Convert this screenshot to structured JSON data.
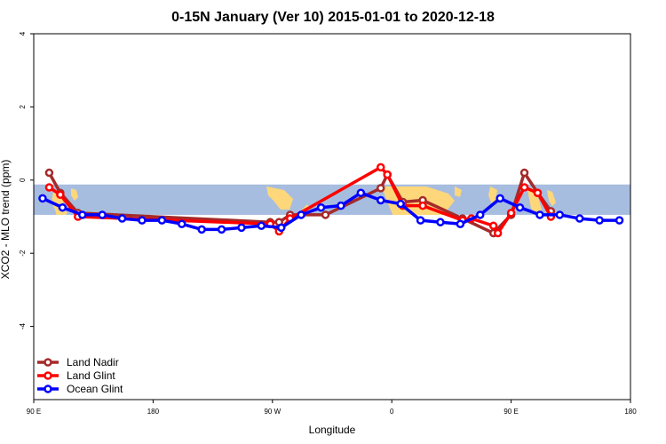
{
  "chart_data": {
    "type": "line",
    "title": "0-15N January (Ver 10)   2015-01-01 to 2020-12-18",
    "xlabel": "Longitude",
    "ylabel": "XCO2 - MLO trend (ppm)",
    "xlim": [
      -90,
      180
    ],
    "ylim": [
      -6,
      4
    ],
    "x_ticks": [
      {
        "value": -90,
        "label": "90 E"
      },
      {
        "value": -36,
        "label": "180"
      },
      {
        "value": 18,
        "label": "90 W"
      },
      {
        "value": 72,
        "label": "0"
      },
      {
        "value": 126,
        "label": "90 E"
      },
      {
        "value": 180,
        "label": "180"
      }
    ],
    "y_ticks": [
      {
        "value": -4,
        "label": "-4"
      },
      {
        "value": -2,
        "label": "-2"
      },
      {
        "value": 0,
        "label": "0"
      },
      {
        "value": 2,
        "label": "2"
      },
      {
        "value": 4,
        "label": "4"
      }
    ],
    "band": {
      "y_low": -0.95,
      "y_high": -0.12,
      "color": "#a7bddf"
    },
    "land_color": "#fdd77a",
    "legend_position": "bottom-left",
    "series": [
      {
        "name": "Land Nadir",
        "color": "#a52a2a",
        "x": [
          -83,
          -78,
          -70,
          17,
          21,
          26,
          42,
          67,
          70,
          77,
          86,
          104,
          118,
          126,
          132,
          138,
          144
        ],
        "y": [
          0.2,
          -0.35,
          -0.9,
          -1.15,
          -1.15,
          -0.95,
          -0.95,
          -0.22,
          0.15,
          -0.6,
          -0.55,
          -1.05,
          -1.45,
          -0.95,
          0.2,
          -0.35,
          -0.85
        ]
      },
      {
        "name": "Land Glint",
        "color": "#ff0000",
        "x": [
          -83,
          -78,
          -70,
          17,
          21,
          26,
          67,
          70,
          77,
          86,
          104,
          108,
          118,
          120,
          126,
          132,
          138,
          144
        ],
        "y": [
          -0.2,
          -0.4,
          -1.0,
          -1.2,
          -1.4,
          -1.05,
          0.35,
          0.15,
          -0.7,
          -0.7,
          -1.1,
          -1.05,
          -1.25,
          -1.45,
          -0.9,
          -0.2,
          -0.35,
          -1.0
        ]
      },
      {
        "name": "Ocean Glint",
        "color": "#0000ff",
        "x": [
          -86,
          -77,
          -68,
          -59,
          -50,
          -41,
          -32,
          -23,
          -14,
          -5,
          4,
          13,
          22,
          31,
          40,
          49,
          58,
          67,
          76,
          85,
          94,
          103,
          112,
          121,
          130,
          139,
          148,
          157,
          166,
          175
        ],
        "y": [
          -0.5,
          -0.75,
          -0.95,
          -0.95,
          -1.05,
          -1.1,
          -1.1,
          -1.2,
          -1.35,
          -1.35,
          -1.3,
          -1.25,
          -1.3,
          -0.95,
          -0.75,
          -0.7,
          -0.35,
          -0.55,
          -0.65,
          -1.1,
          -1.15,
          -1.2,
          -0.95,
          -0.5,
          -0.75,
          -0.95,
          -0.95,
          -1.05,
          -1.1,
          -1.1
        ]
      }
    ]
  }
}
